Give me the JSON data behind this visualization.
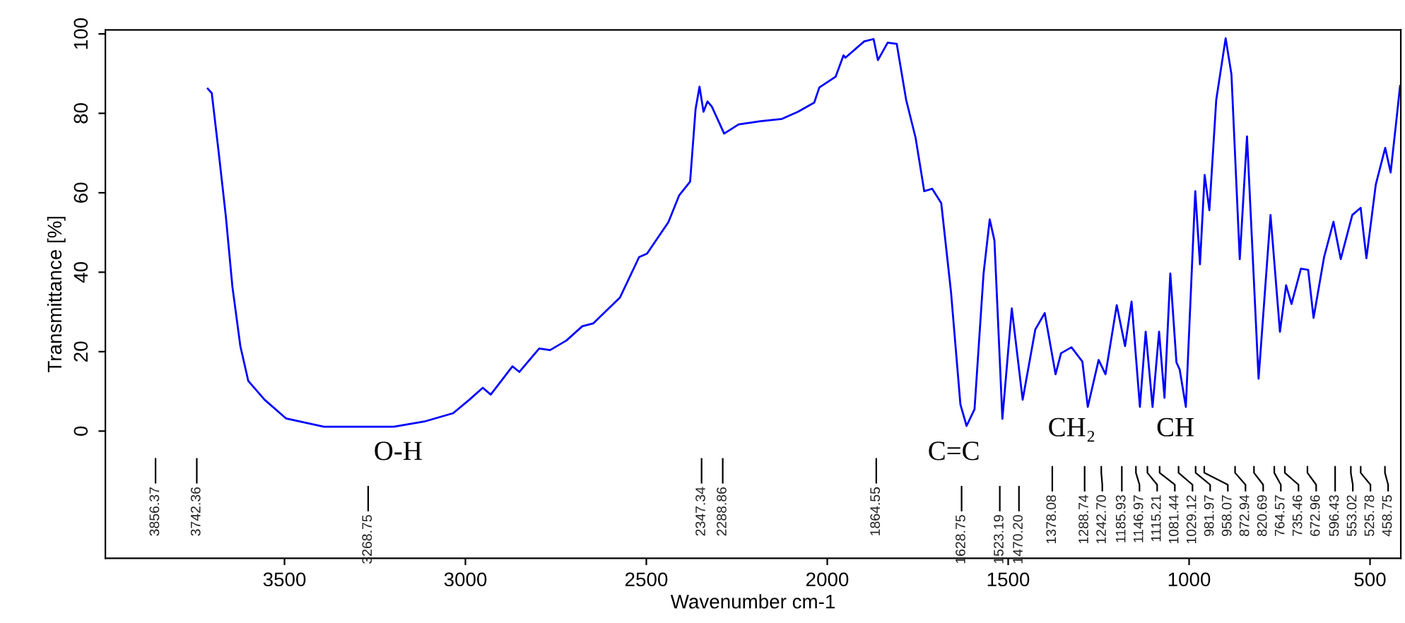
{
  "chart_data": {
    "type": "line",
    "xlabel": "Wavenumber cm-1",
    "ylabel": "Transmittance [%]",
    "xlim": [
      3995,
      415
    ],
    "ylim": [
      -32,
      101
    ],
    "xticks": [
      3500,
      3000,
      2500,
      2000,
      1500,
      1000,
      500
    ],
    "yticks": [
      0,
      20,
      40,
      60,
      80,
      100
    ],
    "grid": false,
    "legend": false,
    "marker": "none",
    "line_style": "solid",
    "series": [
      {
        "color": "#0000ff",
        "x": [
          3712,
          3701,
          3682,
          3662,
          3644,
          3622,
          3600,
          3555,
          3496,
          3391,
          3198,
          3110,
          3034,
          2989,
          2952,
          2930,
          2870,
          2851,
          2796,
          2766,
          2721,
          2677,
          2647,
          2573,
          2520,
          2498,
          2439,
          2409,
          2379,
          2364,
          2353,
          2342,
          2331,
          2319,
          2285,
          2245,
          2185,
          2125,
          2081,
          2036,
          2022,
          1977,
          1955,
          1950,
          1898,
          1872,
          1860,
          1833,
          1808,
          1782,
          1756,
          1732,
          1710,
          1685,
          1658,
          1632,
          1615,
          1593,
          1568,
          1551,
          1538,
          1516,
          1490,
          1460,
          1425,
          1399,
          1369,
          1354,
          1325,
          1295,
          1280,
          1250,
          1231,
          1200,
          1177,
          1159,
          1136,
          1120,
          1101,
          1083,
          1068,
          1052,
          1035,
          1026,
          1009,
          983,
          970,
          957,
          944,
          925,
          899,
          883,
          860,
          840,
          808,
          775,
          749,
          732,
          717,
          691,
          671,
          656,
          627,
          601,
          581,
          549,
          526,
          510,
          484,
          458,
          443,
          426,
          417
        ],
        "values": [
          86.2,
          85.1,
          70.3,
          54,
          36.4,
          21.4,
          12.6,
          7.9,
          3.2,
          1.1,
          1.1,
          2.5,
          4.5,
          7.9,
          10.9,
          9.2,
          16.3,
          14.9,
          20.8,
          20.4,
          22.8,
          26.4,
          27.1,
          33.6,
          43.8,
          44.7,
          52.6,
          59.4,
          62.8,
          81,
          86.7,
          80.4,
          83,
          81.7,
          74.9,
          77.2,
          78,
          78.6,
          80.4,
          82.7,
          86.5,
          89.2,
          94.6,
          94,
          98.1,
          98.7,
          93.4,
          97.8,
          97.5,
          83.4,
          73.9,
          60.4,
          61,
          57.4,
          35,
          6.7,
          1.3,
          5.5,
          39.7,
          53.3,
          48,
          3.1,
          30.9,
          7.9,
          25.6,
          29.7,
          14.3,
          19.6,
          21.1,
          17.5,
          6.1,
          17.9,
          14.3,
          31.7,
          21.4,
          32.6,
          6.1,
          25,
          6.1,
          25,
          8.4,
          39.7,
          17.3,
          15.5,
          6.1,
          60.4,
          42,
          64.5,
          55.6,
          83.4,
          98.9,
          89.8,
          43.3,
          74.2,
          13.2,
          54.4,
          25,
          36.7,
          32,
          40.9,
          40.6,
          28.5,
          43.8,
          52.7,
          43.3,
          54.4,
          56.2,
          43.5,
          62.1,
          71.3,
          65.1,
          79.2,
          86.9
        ]
      }
    ],
    "annotations": [
      "O-H",
      "C=C",
      "CH₂",
      "CH",
      "3856.37",
      "3742.36",
      "3268.75",
      "2347.34",
      "2288.86",
      "1864.55",
      "1628.75",
      "1523.19",
      "1470.20",
      "1378.08",
      "1288.74",
      "1242.70",
      "1185.93",
      "1146.97",
      "1115.21",
      "1081.44",
      "1029.12",
      "981.97",
      "958.07",
      "872.94",
      "820.69",
      "764.57",
      "735.46",
      "672.96",
      "596.43",
      "553.02",
      "525.78",
      "458.75"
    ]
  }
}
